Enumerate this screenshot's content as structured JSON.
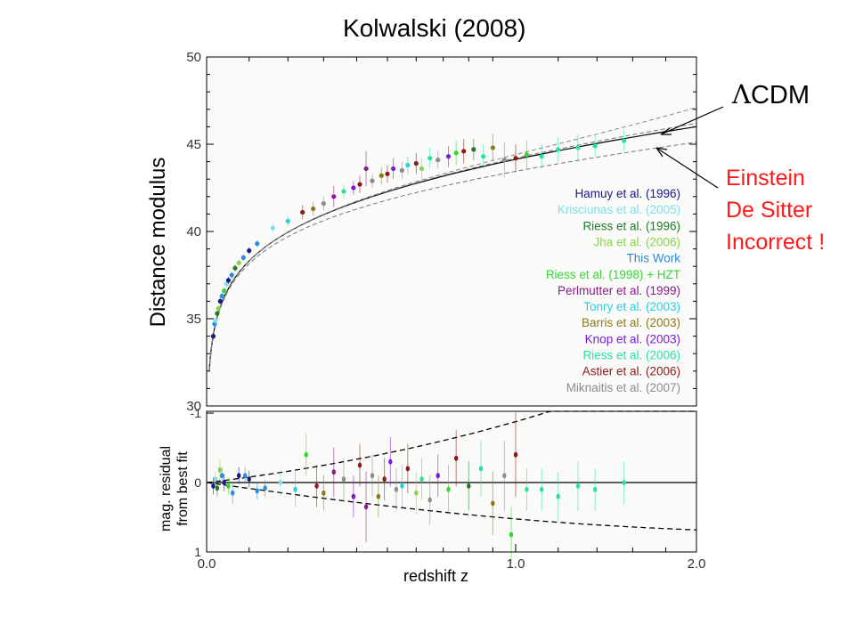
{
  "slide": {
    "title": "Kolwalski (2008)",
    "annotations": {
      "lcdm_symbol": "Λ",
      "lcdm_text": "CDM",
      "einstein_de_sitter": [
        "Einstein",
        "De Sitter",
        "Incorrect !"
      ]
    },
    "colors": {
      "annotation_red": "#ff1a1a",
      "frame": "#000000"
    }
  },
  "chart_data": [
    {
      "type": "scatter",
      "panel": "top",
      "xlabel": "",
      "ylabel": "Distance modulus",
      "xlim": [
        0,
        2.0
      ],
      "ylim": [
        30,
        50
      ],
      "x_scale": "log(1+z)",
      "yticks": [
        30,
        35,
        40,
        45,
        50
      ],
      "legend_position": "right",
      "legend": [
        {
          "name": "Hamuy et al. (1996)",
          "color": "#1a1a8c"
        },
        {
          "name": "Krisciunas et al. (2005)",
          "color": "#7fe0e8"
        },
        {
          "name": "Riess et al. (1996)",
          "color": "#207a2a"
        },
        {
          "name": "Jha et al. (2006)",
          "color": "#8ad44a"
        },
        {
          "name": "This Work",
          "color": "#2a8ce0"
        },
        {
          "name": "Riess et al. (1998) + HZT",
          "color": "#33d633"
        },
        {
          "name": "Perlmutter et al. (1999)",
          "color": "#8c1a8c"
        },
        {
          "name": "Tonry et al. (2003)",
          "color": "#2ad0e0"
        },
        {
          "name": "Barris et al. (2003)",
          "color": "#8c7a1a"
        },
        {
          "name": "Knop et al. (2003)",
          "color": "#7a1ad6"
        },
        {
          "name": "Riess et al. (2006)",
          "color": "#2ae0a0"
        },
        {
          "name": "Astier et al. (2006)",
          "color": "#8c1a1a"
        },
        {
          "name": "Miknaitis et al. (2007)",
          "color": "#8c8c8c"
        }
      ],
      "curves": [
        {
          "name": "ΛCDM",
          "style": "solid"
        },
        {
          "name": "",
          "style": "dashed-upper"
        },
        {
          "name": "Einstein De Sitter",
          "style": "dashed-lower"
        }
      ],
      "points": [
        {
          "z": 0.015,
          "mu": 34.0,
          "err": 0.2,
          "s": 0
        },
        {
          "z": 0.018,
          "mu": 34.7,
          "err": 0.2,
          "s": 4
        },
        {
          "z": 0.02,
          "mu": 34.9,
          "err": 0.2,
          "s": 1
        },
        {
          "z": 0.024,
          "mu": 35.3,
          "err": 0.2,
          "s": 2
        },
        {
          "z": 0.027,
          "mu": 35.6,
          "err": 0.2,
          "s": 3
        },
        {
          "z": 0.031,
          "mu": 36.0,
          "err": 0.2,
          "s": 0
        },
        {
          "z": 0.035,
          "mu": 36.3,
          "err": 0.2,
          "s": 4
        },
        {
          "z": 0.04,
          "mu": 36.6,
          "err": 0.2,
          "s": 5
        },
        {
          "z": 0.046,
          "mu": 37.0,
          "err": 0.2,
          "s": 1
        },
        {
          "z": 0.05,
          "mu": 37.2,
          "err": 0.2,
          "s": 0
        },
        {
          "z": 0.058,
          "mu": 37.5,
          "err": 0.2,
          "s": 4
        },
        {
          "z": 0.066,
          "mu": 37.9,
          "err": 0.2,
          "s": 2
        },
        {
          "z": 0.075,
          "mu": 38.2,
          "err": 0.2,
          "s": 3
        },
        {
          "z": 0.086,
          "mu": 38.5,
          "err": 0.2,
          "s": 4
        },
        {
          "z": 0.1,
          "mu": 38.9,
          "err": 0.2,
          "s": 0
        },
        {
          "z": 0.12,
          "mu": 39.3,
          "err": 0.2,
          "s": 4
        },
        {
          "z": 0.16,
          "mu": 40.2,
          "err": 0.3,
          "s": 1
        },
        {
          "z": 0.2,
          "mu": 40.6,
          "err": 0.3,
          "s": 7
        },
        {
          "z": 0.24,
          "mu": 41.1,
          "err": 0.4,
          "s": 11
        },
        {
          "z": 0.27,
          "mu": 41.3,
          "err": 0.4,
          "s": 8
        },
        {
          "z": 0.3,
          "mu": 41.6,
          "err": 0.4,
          "s": 12
        },
        {
          "z": 0.33,
          "mu": 42.0,
          "err": 0.6,
          "s": 6
        },
        {
          "z": 0.36,
          "mu": 42.3,
          "err": 0.4,
          "s": 10
        },
        {
          "z": 0.39,
          "mu": 42.5,
          "err": 0.4,
          "s": 9
        },
        {
          "z": 0.41,
          "mu": 42.7,
          "err": 0.5,
          "s": 11
        },
        {
          "z": 0.43,
          "mu": 43.6,
          "err": 1.0,
          "s": 6
        },
        {
          "z": 0.45,
          "mu": 42.9,
          "err": 0.4,
          "s": 12
        },
        {
          "z": 0.48,
          "mu": 43.2,
          "err": 0.5,
          "s": 8
        },
        {
          "z": 0.5,
          "mu": 43.3,
          "err": 0.5,
          "s": 11
        },
        {
          "z": 0.52,
          "mu": 43.6,
          "err": 0.6,
          "s": 9
        },
        {
          "z": 0.55,
          "mu": 43.5,
          "err": 0.5,
          "s": 12
        },
        {
          "z": 0.57,
          "mu": 43.8,
          "err": 0.5,
          "s": 7
        },
        {
          "z": 0.6,
          "mu": 43.9,
          "err": 0.6,
          "s": 11
        },
        {
          "z": 0.62,
          "mu": 43.6,
          "err": 0.6,
          "s": 3
        },
        {
          "z": 0.65,
          "mu": 44.2,
          "err": 0.6,
          "s": 10
        },
        {
          "z": 0.68,
          "mu": 44.1,
          "err": 0.5,
          "s": 12
        },
        {
          "z": 0.72,
          "mu": 44.3,
          "err": 0.6,
          "s": 9
        },
        {
          "z": 0.75,
          "mu": 44.5,
          "err": 0.7,
          "s": 5
        },
        {
          "z": 0.78,
          "mu": 44.6,
          "err": 0.7,
          "s": 11
        },
        {
          "z": 0.82,
          "mu": 44.7,
          "err": 0.6,
          "s": 2
        },
        {
          "z": 0.86,
          "mu": 44.3,
          "err": 0.7,
          "s": 10
        },
        {
          "z": 0.9,
          "mu": 44.8,
          "err": 0.8,
          "s": 8
        },
        {
          "z": 0.95,
          "mu": 44.1,
          "err": 1.0,
          "s": 12
        },
        {
          "z": 1.0,
          "mu": 44.2,
          "err": 0.8,
          "s": 11
        },
        {
          "z": 1.05,
          "mu": 44.4,
          "err": 0.8,
          "s": 5
        },
        {
          "z": 1.12,
          "mu": 44.3,
          "err": 0.7,
          "s": 10
        },
        {
          "z": 1.2,
          "mu": 44.7,
          "err": 0.7,
          "s": 10
        },
        {
          "z": 1.3,
          "mu": 44.8,
          "err": 0.8,
          "s": 10
        },
        {
          "z": 1.39,
          "mu": 44.9,
          "err": 0.6,
          "s": 10
        },
        {
          "z": 1.55,
          "mu": 45.2,
          "err": 0.6,
          "s": 10
        }
      ]
    },
    {
      "type": "scatter",
      "panel": "bottom",
      "xlabel": "redshift z",
      "ylabel_lines": [
        "mag. residual",
        "from best fit"
      ],
      "xticks": [
        "0.0",
        "1.0",
        "2.0"
      ],
      "xtick_values": [
        0,
        1.0,
        2.0
      ],
      "ytick_labels": [
        "-1",
        "0",
        "1"
      ],
      "ytick_values": [
        -1,
        0,
        1
      ],
      "ylim": [
        -1,
        1
      ],
      "y_inverted": true,
      "curves": [
        {
          "name": "best fit",
          "style": "solid-zero"
        },
        {
          "name": "",
          "style": "dashed-upper"
        },
        {
          "name": "",
          "style": "dashed-lower"
        }
      ],
      "points": [
        {
          "z": 0.015,
          "r": 0.05,
          "err": 0.12,
          "s": 0
        },
        {
          "z": 0.02,
          "r": -0.05,
          "err": 0.12,
          "s": 1
        },
        {
          "z": 0.024,
          "r": 0.08,
          "err": 0.12,
          "s": 2
        },
        {
          "z": 0.03,
          "r": -0.18,
          "err": 0.15,
          "s": 3
        },
        {
          "z": 0.035,
          "r": -0.1,
          "err": 0.12,
          "s": 4
        },
        {
          "z": 0.04,
          "r": 0.0,
          "err": 0.12,
          "s": 0
        },
        {
          "z": 0.05,
          "r": 0.05,
          "err": 0.12,
          "s": 5
        },
        {
          "z": 0.06,
          "r": 0.15,
          "err": 0.15,
          "s": 4
        },
        {
          "z": 0.075,
          "r": -0.1,
          "err": 0.12,
          "s": 0
        },
        {
          "z": 0.09,
          "r": -0.1,
          "err": 0.12,
          "s": 4
        },
        {
          "z": 0.1,
          "r": -0.05,
          "err": 0.12,
          "s": 0
        },
        {
          "z": 0.12,
          "r": 0.12,
          "err": 0.12,
          "s": 4
        },
        {
          "z": 0.14,
          "r": 0.08,
          "err": 0.12,
          "s": 4
        },
        {
          "z": 0.18,
          "r": 0.0,
          "err": 0.2,
          "s": 1
        },
        {
          "z": 0.22,
          "r": 0.1,
          "err": 0.25,
          "s": 7
        },
        {
          "z": 0.25,
          "r": -0.4,
          "err": 0.3,
          "s": 5
        },
        {
          "z": 0.28,
          "r": 0.05,
          "err": 0.3,
          "s": 11
        },
        {
          "z": 0.3,
          "r": 0.15,
          "err": 0.25,
          "s": 8
        },
        {
          "z": 0.33,
          "r": -0.15,
          "err": 0.35,
          "s": 6
        },
        {
          "z": 0.36,
          "r": -0.05,
          "err": 0.3,
          "s": 12
        },
        {
          "z": 0.39,
          "r": 0.2,
          "err": 0.3,
          "s": 9
        },
        {
          "z": 0.41,
          "r": -0.25,
          "err": 0.3,
          "s": 11
        },
        {
          "z": 0.43,
          "r": 0.35,
          "err": 0.5,
          "s": 6
        },
        {
          "z": 0.45,
          "r": -0.1,
          "err": 0.3,
          "s": 12
        },
        {
          "z": 0.47,
          "r": 0.2,
          "err": 0.3,
          "s": 8
        },
        {
          "z": 0.49,
          "r": -0.05,
          "err": 0.3,
          "s": 11
        },
        {
          "z": 0.51,
          "r": -0.3,
          "err": 0.35,
          "s": 9
        },
        {
          "z": 0.53,
          "r": 0.1,
          "err": 0.3,
          "s": 12
        },
        {
          "z": 0.55,
          "r": 0.05,
          "err": 0.3,
          "s": 7
        },
        {
          "z": 0.57,
          "r": -0.2,
          "err": 0.35,
          "s": 11
        },
        {
          "z": 0.6,
          "r": 0.15,
          "err": 0.3,
          "s": 3
        },
        {
          "z": 0.62,
          "r": -0.05,
          "err": 0.3,
          "s": 10
        },
        {
          "z": 0.65,
          "r": 0.25,
          "err": 0.35,
          "s": 12
        },
        {
          "z": 0.68,
          "r": -0.1,
          "err": 0.3,
          "s": 9
        },
        {
          "z": 0.72,
          "r": 0.1,
          "err": 0.35,
          "s": 5
        },
        {
          "z": 0.75,
          "r": -0.35,
          "err": 0.4,
          "s": 11
        },
        {
          "z": 0.8,
          "r": 0.05,
          "err": 0.35,
          "s": 2
        },
        {
          "z": 0.85,
          "r": -0.2,
          "err": 0.4,
          "s": 10
        },
        {
          "z": 0.9,
          "r": 0.3,
          "err": 0.45,
          "s": 8
        },
        {
          "z": 0.95,
          "r": -0.1,
          "err": 0.5,
          "s": 12
        },
        {
          "z": 1.0,
          "r": -0.4,
          "err": 0.6,
          "s": 11
        },
        {
          "z": 0.98,
          "r": 0.75,
          "err": 0.4,
          "s": 5
        },
        {
          "z": 1.05,
          "r": 0.1,
          "err": 0.3,
          "s": 10
        },
        {
          "z": 1.12,
          "r": 0.1,
          "err": 0.3,
          "s": 10
        },
        {
          "z": 1.2,
          "r": 0.2,
          "err": 0.35,
          "s": 10
        },
        {
          "z": 1.3,
          "r": 0.05,
          "err": 0.35,
          "s": 10
        },
        {
          "z": 1.39,
          "r": 0.1,
          "err": 0.3,
          "s": 10
        },
        {
          "z": 1.55,
          "r": 0.0,
          "err": 0.3,
          "s": 10
        }
      ]
    }
  ]
}
